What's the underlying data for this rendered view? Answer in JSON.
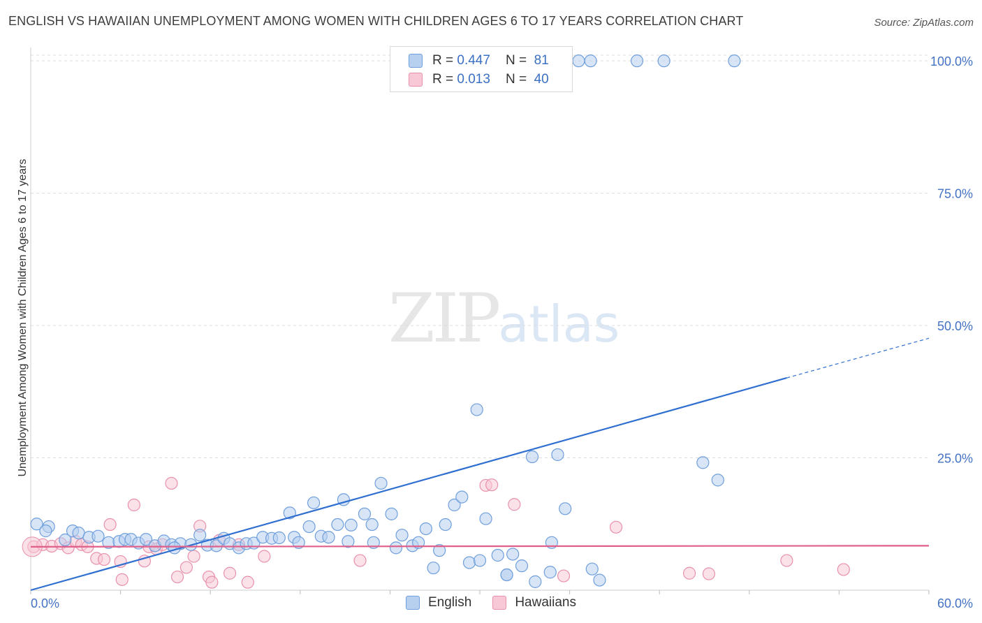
{
  "title": "ENGLISH VS HAWAIIAN UNEMPLOYMENT AMONG WOMEN WITH CHILDREN AGES 6 TO 17 YEARS CORRELATION CHART",
  "source": "Source: ZipAtlas.com",
  "watermark": {
    "zip": "ZIP",
    "atlas": "atlas"
  },
  "legend": {
    "english": {
      "r_label": "R =",
      "r_value": "0.447",
      "n_label": "N =",
      "n_value": "81"
    },
    "hawaiian": {
      "r_label": "R =",
      "r_value": "0.013",
      "n_label": "N =",
      "n_value": "40"
    }
  },
  "colors": {
    "english_fill": "#b8d0f0",
    "english_stroke": "#6f9fdc",
    "english_line": "#2f6fd0",
    "hawaiian_fill": "#f8c8d6",
    "hawaiian_stroke": "#e891ac",
    "hawaiian_line": "#e0608a",
    "grid": "#dddddd",
    "axis_text": "#4472c4"
  },
  "chart_data": {
    "type": "scatter",
    "title": "ENGLISH VS HAWAIIAN UNEMPLOYMENT AMONG WOMEN WITH CHILDREN AGES 6 TO 17 YEARS CORRELATION CHART",
    "xlabel": "",
    "ylabel": "Unemployment Among Women with Children Ages 6 to 17 years",
    "xlim": [
      0,
      60
    ],
    "ylim": [
      0,
      102
    ],
    "x_tick_labels": [
      "0.0%",
      "60.0%"
    ],
    "y_ticks": [
      25,
      50,
      75,
      100
    ],
    "y_tick_labels": [
      "25.0%",
      "50.0%",
      "75.0%",
      "100.0%"
    ],
    "bottom_legend": [
      "English",
      "Hawaiians"
    ],
    "series": [
      {
        "name": "English",
        "trend": {
          "x0": 0,
          "y0": 0,
          "x1": 50.5,
          "y1": 40.1,
          "dash_to_x": 60,
          "dash_to_y": 47.6
        },
        "points": [
          [
            0.4,
            12.5
          ],
          [
            1.2,
            12.0
          ],
          [
            1.0,
            11.2
          ],
          [
            2.3,
            9.5
          ],
          [
            2.8,
            11.2
          ],
          [
            3.2,
            10.8
          ],
          [
            3.9,
            10.0
          ],
          [
            4.5,
            10.2
          ],
          [
            5.2,
            9.0
          ],
          [
            5.9,
            9.2
          ],
          [
            6.3,
            9.6
          ],
          [
            6.7,
            9.6
          ],
          [
            7.2,
            8.9
          ],
          [
            7.7,
            9.6
          ],
          [
            8.3,
            8.4
          ],
          [
            8.9,
            9.3
          ],
          [
            9.4,
            8.6
          ],
          [
            10.0,
            8.8
          ],
          [
            10.7,
            8.6
          ],
          [
            11.3,
            10.4
          ],
          [
            11.8,
            8.5
          ],
          [
            12.4,
            8.4
          ],
          [
            12.9,
            9.8
          ],
          [
            13.3,
            8.8
          ],
          [
            13.9,
            8.0
          ],
          [
            14.4,
            8.8
          ],
          [
            14.9,
            8.9
          ],
          [
            15.5,
            10.0
          ],
          [
            16.1,
            9.8
          ],
          [
            16.6,
            9.9
          ],
          [
            17.3,
            14.6
          ],
          [
            17.6,
            10.0
          ],
          [
            17.9,
            9.0
          ],
          [
            18.6,
            12.0
          ],
          [
            18.9,
            16.5
          ],
          [
            19.4,
            10.2
          ],
          [
            19.9,
            10.0
          ],
          [
            20.5,
            12.4
          ],
          [
            20.9,
            17.1
          ],
          [
            21.4,
            12.3
          ],
          [
            22.3,
            14.4
          ],
          [
            22.8,
            12.4
          ],
          [
            22.9,
            9.0
          ],
          [
            23.4,
            20.2
          ],
          [
            24.1,
            14.4
          ],
          [
            24.4,
            8.0
          ],
          [
            24.8,
            10.4
          ],
          [
            25.5,
            8.4
          ],
          [
            25.9,
            9.0
          ],
          [
            26.4,
            11.6
          ],
          [
            26.9,
            4.2
          ],
          [
            27.3,
            7.5
          ],
          [
            27.7,
            12.4
          ],
          [
            28.3,
            16.1
          ],
          [
            28.8,
            17.6
          ],
          [
            29.3,
            5.2
          ],
          [
            30.0,
            5.6
          ],
          [
            29.8,
            34.1
          ],
          [
            30.4,
            13.5
          ],
          [
            31.2,
            6.6
          ],
          [
            31.8,
            2.9
          ],
          [
            32.2,
            6.8
          ],
          [
            32.8,
            4.6
          ],
          [
            33.5,
            25.2
          ],
          [
            33.7,
            1.6
          ],
          [
            35.2,
            25.6
          ],
          [
            34.7,
            3.4
          ],
          [
            35.7,
            15.4
          ],
          [
            34.8,
            9.0
          ],
          [
            37.5,
            4.0
          ],
          [
            38.0,
            1.9
          ],
          [
            44.9,
            24.1
          ],
          [
            45.9,
            20.8
          ],
          [
            36.6,
            100
          ],
          [
            37.4,
            100
          ],
          [
            40.5,
            100
          ],
          [
            42.3,
            100
          ],
          [
            47.0,
            100
          ],
          [
            31.8,
            2.9
          ],
          [
            21.2,
            9.2
          ],
          [
            9.6,
            8.0
          ]
        ]
      },
      {
        "name": "Hawaiians",
        "trend": {
          "x0": 0,
          "y0": 8.2,
          "x1": 60,
          "y1": 8.4
        },
        "points": [
          [
            0.2,
            8.2
          ],
          [
            0.8,
            8.6
          ],
          [
            1.4,
            8.3
          ],
          [
            2.0,
            8.8
          ],
          [
            2.5,
            8.0
          ],
          [
            3.0,
            9.2
          ],
          [
            3.4,
            8.6
          ],
          [
            3.8,
            8.2
          ],
          [
            4.4,
            6.0
          ],
          [
            4.9,
            5.8
          ],
          [
            5.3,
            12.4
          ],
          [
            6.0,
            5.4
          ],
          [
            6.1,
            2.0
          ],
          [
            6.9,
            16.1
          ],
          [
            7.6,
            5.5
          ],
          [
            7.9,
            8.2
          ],
          [
            8.4,
            7.8
          ],
          [
            8.8,
            8.6
          ],
          [
            9.4,
            20.2
          ],
          [
            9.8,
            2.5
          ],
          [
            10.4,
            4.3
          ],
          [
            10.9,
            6.4
          ],
          [
            11.3,
            12.1
          ],
          [
            11.9,
            2.5
          ],
          [
            12.1,
            1.5
          ],
          [
            12.6,
            9.4
          ],
          [
            13.3,
            3.2
          ],
          [
            13.9,
            8.6
          ],
          [
            14.5,
            1.5
          ],
          [
            15.6,
            6.4
          ],
          [
            22.0,
            5.6
          ],
          [
            30.4,
            19.8
          ],
          [
            30.8,
            19.9
          ],
          [
            32.3,
            16.2
          ],
          [
            35.6,
            2.7
          ],
          [
            39.1,
            11.9
          ],
          [
            44.0,
            3.2
          ],
          [
            45.3,
            3.1
          ],
          [
            50.5,
            5.6
          ],
          [
            54.3,
            3.9
          ]
        ]
      }
    ]
  }
}
